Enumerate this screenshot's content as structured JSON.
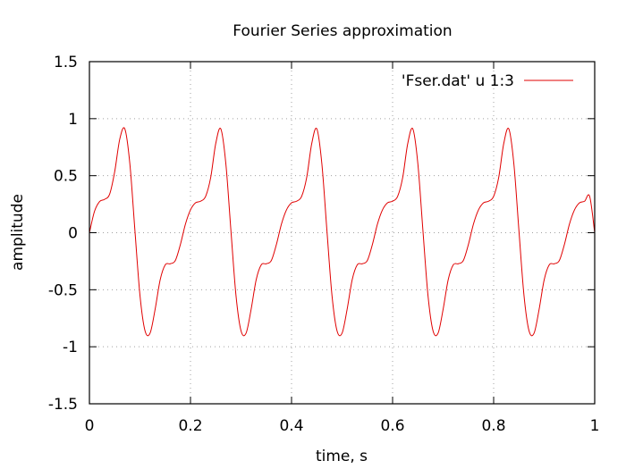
{
  "chart_data": {
    "type": "line",
    "title": "Fourier Series approximation",
    "xlabel": "time, s",
    "ylabel": "amplitude",
    "xlim": [
      0,
      1
    ],
    "ylim": [
      -1.5,
      1.5
    ],
    "xticks": [
      0,
      0.2,
      0.4,
      0.6,
      0.8,
      1
    ],
    "xtick_labels": [
      "0",
      "0.2",
      "0.4",
      "0.6",
      "0.8",
      "1"
    ],
    "yticks": [
      -1.5,
      -1,
      -0.5,
      0,
      0.5,
      1,
      1.5
    ],
    "ytick_labels": [
      "-1.5",
      "-1",
      "-0.5",
      "0",
      "0.5",
      "1",
      "1.5"
    ],
    "grid": true,
    "legend_position": "top-right",
    "series": [
      {
        "name": "'Fser.dat' u 1:3",
        "color": "#e00000",
        "x": [
          0,
          0.01,
          0.02,
          0.03,
          0.04,
          0.05,
          0.06,
          0.07,
          0.08,
          0.09,
          0.1,
          0.11,
          0.12,
          0.13,
          0.14,
          0.15,
          0.16,
          0.17,
          0.18,
          0.19,
          0.2,
          0.21,
          0.22,
          0.23,
          0.24,
          0.25,
          0.26,
          0.27,
          0.28,
          0.29,
          0.3,
          0.31,
          0.32,
          0.33,
          0.34,
          0.35,
          0.36,
          0.37,
          0.38,
          0.39,
          0.4,
          0.41,
          0.42,
          0.43,
          0.44,
          0.45,
          0.46,
          0.47,
          0.48,
          0.49,
          0.5,
          0.51,
          0.52,
          0.53,
          0.54,
          0.55,
          0.56,
          0.57,
          0.58,
          0.59,
          0.6,
          0.61,
          0.62,
          0.63,
          0.64,
          0.65,
          0.66,
          0.67,
          0.68,
          0.69,
          0.7,
          0.71,
          0.72,
          0.73,
          0.74,
          0.75,
          0.76,
          0.77,
          0.78,
          0.79,
          0.8,
          0.81,
          0.82,
          0.83,
          0.84,
          0.85,
          0.86,
          0.87,
          0.88,
          0.89,
          0.9,
          0.91,
          0.92,
          0.93,
          0.94,
          0.95,
          0.96,
          0.97,
          0.98,
          0.99,
          1
        ],
        "y": [
          0,
          0.187,
          0.273,
          0.293,
          0.338,
          0.535,
          0.82,
          0.911,
          0.605,
          0.021,
          -0.548,
          -0.86,
          -0.881,
          -0.672,
          -0.413,
          -0.282,
          -0.272,
          -0.244,
          -0.104,
          0.075,
          0.2,
          0.262,
          0.276,
          0.319,
          0.484,
          0.782,
          0.911,
          0.605,
          0.021,
          -0.548,
          -0.86,
          -0.881,
          -0.672,
          -0.413,
          -0.282,
          -0.272,
          -0.244,
          -0.104,
          0.075,
          0.2,
          0.262,
          0.276,
          0.319,
          0.484,
          0.782,
          0.911,
          0.605,
          0.021,
          -0.548,
          -0.86,
          -0.881,
          -0.672,
          -0.413,
          -0.282,
          -0.272,
          -0.244,
          -0.104,
          0.075,
          0.2,
          0.262,
          0.276,
          0.319,
          0.484,
          0.782,
          0.911,
          0.605,
          0.021,
          -0.548,
          -0.86,
          -0.881,
          -0.672,
          -0.413,
          -0.282,
          -0.272,
          -0.244,
          -0.104,
          0.075,
          0.2,
          0.262,
          0.276,
          0.319,
          0.484,
          0.782,
          0.911,
          0.605,
          0.021,
          -0.548,
          -0.86,
          -0.881,
          -0.672,
          -0.413,
          -0.282,
          -0.272,
          -0.244,
          -0.104,
          0.075,
          0.2,
          0.262,
          0.276,
          0.319,
          0
        ]
      }
    ]
  }
}
